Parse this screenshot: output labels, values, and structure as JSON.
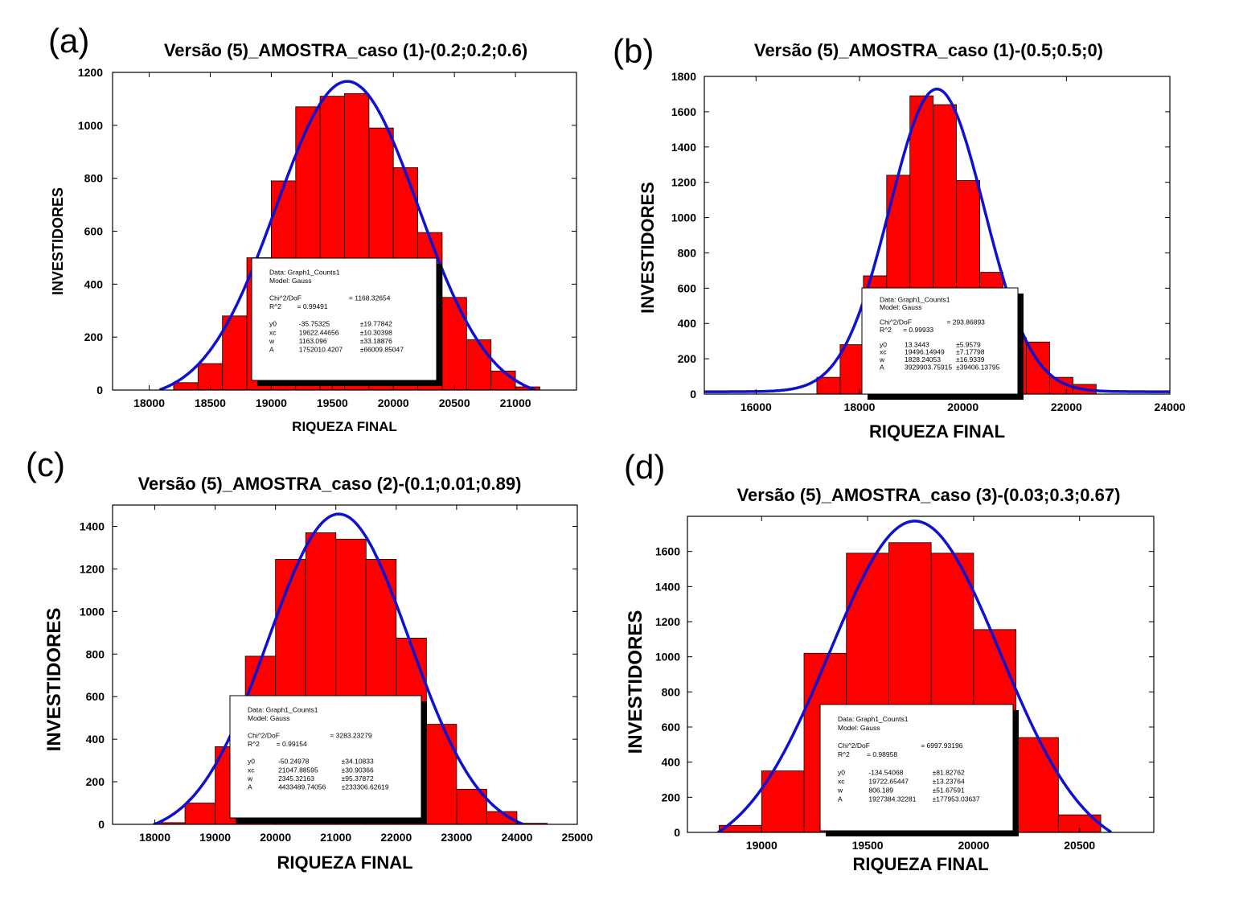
{
  "chart_data": [
    {
      "type": "bar",
      "panel_label": "(a)",
      "title": "Versão (5)_AMOSTRA_caso (1)-(0.2;0.2;0.6)",
      "xlabel": "RIQUEZA FINAL",
      "ylabel": "INVESTIDORES",
      "xlim": [
        17700,
        21500
      ],
      "ylim": [
        0,
        1200
      ],
      "xticks": [
        "18000",
        "18500",
        "19000",
        "19500",
        "20000",
        "20500",
        "21000"
      ],
      "yticks": [
        "0",
        "200",
        "400",
        "600",
        "800",
        "1000",
        "1200"
      ],
      "bin_width": 200,
      "bins": [
        {
          "x": 18300,
          "y": 28
        },
        {
          "x": 18500,
          "y": 100
        },
        {
          "x": 18700,
          "y": 280
        },
        {
          "x": 18900,
          "y": 500
        },
        {
          "x": 19100,
          "y": 790
        },
        {
          "x": 19300,
          "y": 1070
        },
        {
          "x": 19500,
          "y": 1110
        },
        {
          "x": 19700,
          "y": 1120
        },
        {
          "x": 19900,
          "y": 990
        },
        {
          "x": 20100,
          "y": 840
        },
        {
          "x": 20300,
          "y": 595
        },
        {
          "x": 20500,
          "y": 350
        },
        {
          "x": 20700,
          "y": 190
        },
        {
          "x": 20900,
          "y": 72
        },
        {
          "x": 21100,
          "y": 12
        }
      ],
      "fit": {
        "type": "gauss",
        "y0": -35.75325,
        "xc": 19622.44656,
        "w": 1163.096,
        "A": 1752010.4207
      },
      "fit_box": {
        "data": "Data: Graph1_Counts1",
        "model": "Model: Gauss",
        "chi_label": "Chi^2/DoF",
        "chi_value": "= 1168.32654",
        "r2_label": "R^2",
        "r2_value": "=  0.99491",
        "params": [
          {
            "name": "y0",
            "value": "-35.75325",
            "err": "±19.77842"
          },
          {
            "name": "xc",
            "value": "19622.44656",
            "err": "±10.30398"
          },
          {
            "name": "w",
            "value": "1163.096",
            "err": "±33.18876"
          },
          {
            "name": "A",
            "value": "1752010.4207",
            "err": "±66009.85047"
          }
        ]
      }
    },
    {
      "type": "bar",
      "panel_label": "(b)",
      "title": "Versão (5)_AMOSTRA_caso (1)-(0.5;0.5;0)",
      "xlabel": "RIQUEZA FINAL",
      "ylabel": "INVESTIDORES",
      "xlim": [
        15000,
        24000
      ],
      "ylim": [
        0,
        1800
      ],
      "xticks": [
        "16000",
        "18000",
        "20000",
        "22000",
        "24000"
      ],
      "yticks": [
        "0",
        "200",
        "400",
        "600",
        "800",
        "1000",
        "1200",
        "1400",
        "1600",
        "1800"
      ],
      "bin_width": 450,
      "bins": [
        {
          "x": 17400,
          "y": 95
        },
        {
          "x": 17850,
          "y": 280
        },
        {
          "x": 18300,
          "y": 670
        },
        {
          "x": 18750,
          "y": 1240
        },
        {
          "x": 19200,
          "y": 1690
        },
        {
          "x": 19650,
          "y": 1640
        },
        {
          "x": 20100,
          "y": 1210
        },
        {
          "x": 20550,
          "y": 690
        },
        {
          "x": 21000,
          "y": 320
        },
        {
          "x": 21450,
          "y": 295
        },
        {
          "x": 21900,
          "y": 95
        },
        {
          "x": 22350,
          "y": 55
        }
      ],
      "fit": {
        "type": "gauss",
        "y0": 13.3443,
        "xc": 19496.14949,
        "w": 1828.24053,
        "A": 3929903.75915
      },
      "fit_box": {
        "data": "Data: Graph1_Counts1",
        "model": "Model: Gauss",
        "chi_label": "Chi^2/DoF",
        "chi_value": "= 293.86893",
        "r2_label": "R^2",
        "r2_value": "=  0.99933",
        "params": [
          {
            "name": "y0",
            "value": "13.3443",
            "err": "±5.9579"
          },
          {
            "name": "xc",
            "value": "19496.14949",
            "err": "±7.17798"
          },
          {
            "name": "w",
            "value": "1828.24053",
            "err": "±16.9339"
          },
          {
            "name": "A",
            "value": "3929903.75915",
            "err": "±39406.13795"
          }
        ]
      }
    },
    {
      "type": "bar",
      "panel_label": "(c)",
      "title": "Versão (5)_AMOSTRA_caso (2)-(0.1;0.01;0.89)",
      "xlabel": "RIQUEZA FINAL",
      "ylabel": "INVESTIDORES",
      "xlim": [
        17300,
        25000
      ],
      "ylim": [
        0,
        1500
      ],
      "xticks": [
        "18000",
        "19000",
        "20000",
        "21000",
        "22000",
        "23000",
        "24000",
        "25000"
      ],
      "yticks": [
        "0",
        "200",
        "400",
        "600",
        "800",
        "1000",
        "1200",
        "1400"
      ],
      "bin_width": 500,
      "bins": [
        {
          "x": 18250,
          "y": 8
        },
        {
          "x": 18750,
          "y": 100
        },
        {
          "x": 19250,
          "y": 365
        },
        {
          "x": 19750,
          "y": 790
        },
        {
          "x": 20250,
          "y": 1245
        },
        {
          "x": 20750,
          "y": 1370
        },
        {
          "x": 21250,
          "y": 1340
        },
        {
          "x": 21750,
          "y": 1245
        },
        {
          "x": 22250,
          "y": 875
        },
        {
          "x": 22750,
          "y": 470
        },
        {
          "x": 23250,
          "y": 165
        },
        {
          "x": 23750,
          "y": 60
        },
        {
          "x": 24250,
          "y": 5
        }
      ],
      "fit": {
        "type": "gauss",
        "y0": -50.24978,
        "xc": 21047.88595,
        "w": 2345.32163,
        "A": 4433489.74056
      },
      "fit_box": {
        "data": "Data: Graph1_Counts1",
        "model": "Model: Gauss",
        "chi_label": "Chi^2/DoF",
        "chi_value": "= 3283.23279",
        "r2_label": "R^2",
        "r2_value": "=  0.99154",
        "params": [
          {
            "name": "y0",
            "value": "-50.24978",
            "err": "±34.10833"
          },
          {
            "name": "xc",
            "value": "21047.88595",
            "err": "±30.90366"
          },
          {
            "name": "w",
            "value": "2345.32163",
            "err": "±95.37872"
          },
          {
            "name": "A",
            "value": "4433489.74056",
            "err": "±233306.62619"
          }
        ]
      }
    },
    {
      "type": "bar",
      "panel_label": "(d)",
      "title": "Versão (5)_AMOSTRA_caso (3)-(0.03;0.3;0.67)",
      "xlabel": "RIQUEZA FINAL",
      "ylabel": "INVESTIDORES",
      "xlim": [
        18650,
        20850
      ],
      "ylim": [
        0,
        1800
      ],
      "xticks": [
        "19000",
        "19500",
        "20000",
        "20500"
      ],
      "yticks": [
        "0",
        "200",
        "400",
        "600",
        "800",
        "1000",
        "1200",
        "1400",
        "1600"
      ],
      "bin_width": 200,
      "bins": [
        {
          "x": 18900,
          "y": 40
        },
        {
          "x": 19100,
          "y": 350
        },
        {
          "x": 19300,
          "y": 1020
        },
        {
          "x": 19500,
          "y": 1590
        },
        {
          "x": 19700,
          "y": 1650
        },
        {
          "x": 19900,
          "y": 1590
        },
        {
          "x": 20100,
          "y": 1155
        },
        {
          "x": 20300,
          "y": 540
        },
        {
          "x": 20500,
          "y": 100
        }
      ],
      "fit": {
        "type": "gauss",
        "y0": -134.54068,
        "xc": 19722.65447,
        "w": 806.189,
        "A": 1927384.32281
      },
      "fit_box": {
        "data": "Data: Graph1_Counts1",
        "model": "Model: Gauss",
        "chi_label": "Chi^2/DoF",
        "chi_value": "= 6997.93196",
        "r2_label": "R^2",
        "r2_value": "=  0.98958",
        "params": [
          {
            "name": "y0",
            "value": "-134.54068",
            "err": "±81.82762"
          },
          {
            "name": "xc",
            "value": "19722.65447",
            "err": "±13.23764"
          },
          {
            "name": "w",
            "value": "806.189",
            "err": "±51.67591"
          },
          {
            "name": "A",
            "value": "1927384.32281",
            "err": "±177953.03637"
          }
        ]
      }
    }
  ],
  "colors": {
    "bar": "#ff0000",
    "bar_edge": "#000000",
    "fit_curve": "#1010d0"
  }
}
